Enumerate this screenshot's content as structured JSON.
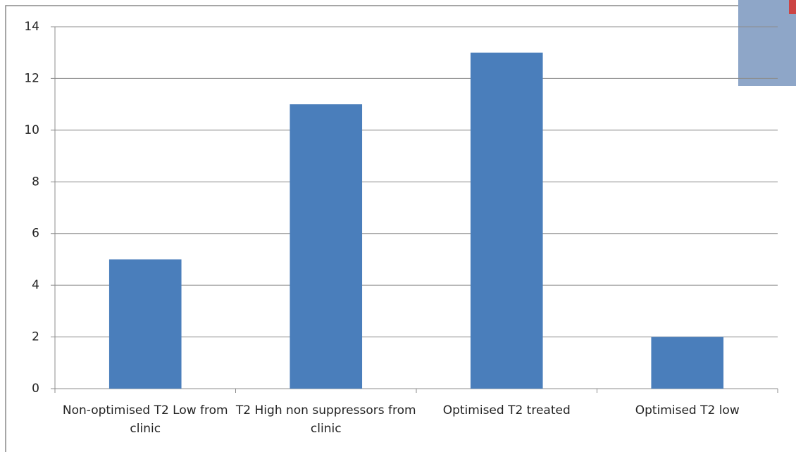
{
  "chart_data": {
    "type": "bar",
    "categories": [
      "Non-optimised T2 Low from clinic",
      "T2 High non suppressors from clinic",
      "Optimised T2 treated",
      "Optimised T2 low"
    ],
    "values": [
      5,
      11,
      13,
      2
    ],
    "color": "#4a7ebb",
    "ylim": [
      0,
      14
    ],
    "yticks": [
      0,
      2,
      4,
      6,
      8,
      10,
      12,
      14
    ],
    "grid": true
  }
}
